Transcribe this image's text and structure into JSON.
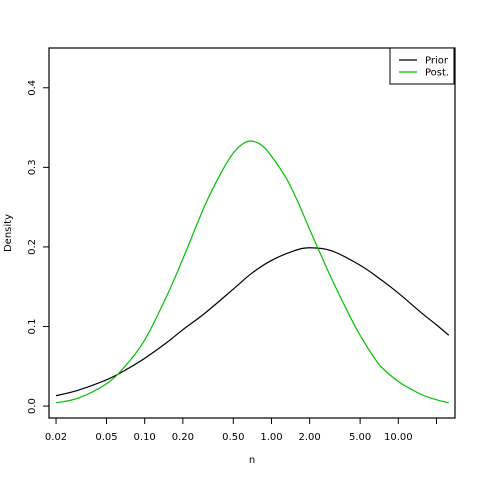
{
  "chart_data": {
    "type": "line",
    "xscale": "log",
    "xlabel": "n",
    "ylabel": "Density",
    "xlim": [
      0.0176,
      28
    ],
    "ylim": [
      -0.015,
      0.45
    ],
    "xticks": [
      {
        "value": 0.02,
        "label": "0.02"
      },
      {
        "value": 0.05,
        "label": "0.05"
      },
      {
        "value": 0.1,
        "label": "0.10"
      },
      {
        "value": 0.2,
        "label": "0.20"
      },
      {
        "value": 0.5,
        "label": "0.50"
      },
      {
        "value": 1,
        "label": "1.00"
      },
      {
        "value": 2,
        "label": "2.00"
      },
      {
        "value": 5,
        "label": "5.00"
      },
      {
        "value": 10,
        "label": "10.00"
      },
      {
        "value": 20,
        "label": ""
      }
    ],
    "yticks": [
      {
        "value": 0.0,
        "label": "0.0"
      },
      {
        "value": 0.1,
        "label": "0.1"
      },
      {
        "value": 0.2,
        "label": "0.2"
      },
      {
        "value": 0.3,
        "label": "0.3"
      },
      {
        "value": 0.4,
        "label": "0.4"
      }
    ],
    "grid": false,
    "legend": "top-right",
    "series": [
      {
        "name": "Prior",
        "color": "#000000",
        "x": [
          0.02,
          0.03,
          0.05,
          0.07,
          0.1,
          0.15,
          0.2,
          0.3,
          0.5,
          0.7,
          1,
          1.5,
          2,
          3,
          5,
          7,
          10,
          15,
          20,
          25
        ],
        "y": [
          0.013,
          0.02,
          0.033,
          0.045,
          0.06,
          0.08,
          0.096,
          0.117,
          0.147,
          0.167,
          0.183,
          0.195,
          0.199,
          0.195,
          0.177,
          0.161,
          0.142,
          0.118,
          0.102,
          0.089
        ]
      },
      {
        "name": "Post.",
        "color": "#00c000",
        "x": [
          0.02,
          0.03,
          0.05,
          0.07,
          0.1,
          0.15,
          0.2,
          0.3,
          0.4,
          0.5,
          0.6,
          0.7,
          0.85,
          1,
          1.3,
          1.6,
          2,
          2.5,
          3,
          4,
          5,
          7,
          10,
          15,
          20,
          25
        ],
        "y": [
          0.004,
          0.01,
          0.028,
          0.05,
          0.083,
          0.139,
          0.185,
          0.253,
          0.293,
          0.318,
          0.33,
          0.333,
          0.327,
          0.314,
          0.287,
          0.258,
          0.222,
          0.187,
          0.159,
          0.118,
          0.089,
          0.053,
          0.031,
          0.015,
          0.008,
          0.004
        ]
      }
    ]
  }
}
